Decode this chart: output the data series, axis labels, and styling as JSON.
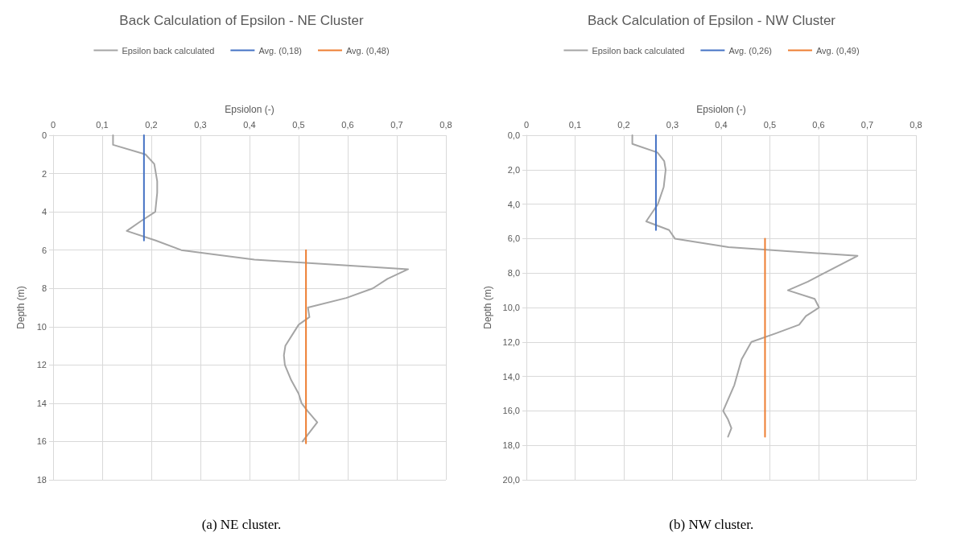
{
  "chart_data": [
    {
      "type": "line",
      "title": "Back Calculation of Epsilon - NE Cluster",
      "xlabel": "Epsiolon (-)",
      "ylabel": "Depth (m)",
      "legend": "top",
      "grid": true,
      "marker": "none",
      "line_style": "solid",
      "xlim": [
        0,
        0.8
      ],
      "xticks": [
        0,
        {
          "value": 0.1,
          "label": "0,1"
        },
        {
          "value": 0.2,
          "label": "0,2"
        },
        {
          "value": 0.3,
          "label": "0,3"
        },
        {
          "value": 0.4,
          "label": "0,4"
        },
        {
          "value": 0.5,
          "label": "0,5"
        },
        {
          "value": 0.6,
          "label": "0,6"
        },
        {
          "value": 0.7,
          "label": "0,7"
        },
        {
          "value": 0.8,
          "label": "0,8"
        }
      ],
      "ylim": [
        18,
        0
      ],
      "yticks": [
        0,
        2,
        4,
        6,
        8,
        10,
        12,
        14,
        16,
        18
      ],
      "annotations": [
        "(a) NE cluster."
      ],
      "series": [
        {
          "name": "Epsilon back calculated",
          "color": "#a5a5a5",
          "x": [
            0.122,
            0.122,
            0.188,
            0.206,
            0.212,
            0.212,
            0.208,
            0.178,
            0.15,
            0.209,
            0.261,
            0.41,
            0.723,
            0.681,
            0.651,
            0.597,
            0.519,
            0.522,
            0.5,
            0.473,
            0.47,
            0.472,
            0.485,
            0.5,
            0.506,
            0.518,
            0.538,
            0.508
          ],
          "values": [
            0,
            0.5,
            1,
            1.5,
            2.4,
            3,
            4,
            4.5,
            5,
            5.5,
            6,
            6.5,
            7,
            7.5,
            8,
            8.5,
            9,
            9.5,
            9.9,
            11,
            11.5,
            12,
            12.8,
            13.5,
            14,
            14.4,
            15,
            16
          ]
        },
        {
          "name": "Avg. (0,18)",
          "color": "#4472c4",
          "x": [
            0.185,
            0.185
          ],
          "values": [
            0,
            5.5
          ]
        },
        {
          "name": "Avg. (0,48)",
          "color": "#ed7d31",
          "x": [
            0.515,
            0.515
          ],
          "values": [
            6,
            16.1
          ]
        }
      ]
    },
    {
      "type": "line",
      "title": "Back Calculation of Epsilon - NW Cluster",
      "xlabel": "Epsiolon (-)",
      "ylabel": "Depth (m)",
      "legend": "top",
      "grid": true,
      "marker": "none",
      "line_style": "solid",
      "xlim": [
        0,
        0.8
      ],
      "xticks": [
        0,
        {
          "value": 0.1,
          "label": "0,1"
        },
        {
          "value": 0.2,
          "label": "0,2"
        },
        {
          "value": 0.3,
          "label": "0,3"
        },
        {
          "value": 0.4,
          "label": "0,4"
        },
        {
          "value": 0.5,
          "label": "0,5"
        },
        {
          "value": 0.6,
          "label": "0,6"
        },
        {
          "value": 0.7,
          "label": "0,7"
        },
        {
          "value": 0.8,
          "label": "0,8"
        }
      ],
      "ylim": [
        20,
        0
      ],
      "yticks": [
        {
          "value": 0,
          "label": "0,0"
        },
        {
          "value": 2,
          "label": "2,0"
        },
        {
          "value": 4,
          "label": "4,0"
        },
        {
          "value": 6,
          "label": "6,0"
        },
        {
          "value": 8,
          "label": "8,0"
        },
        {
          "value": 10,
          "label": "10,0"
        },
        {
          "value": 12,
          "label": "12,0"
        },
        {
          "value": 14,
          "label": "14,0"
        },
        {
          "value": 16,
          "label": "16,0"
        },
        {
          "value": 18,
          "label": "18,0"
        },
        {
          "value": 20,
          "label": "20,0"
        }
      ],
      "annotations": [
        "(b) NW cluster."
      ],
      "series": [
        {
          "name": "Epsilon back calculated",
          "color": "#a5a5a5",
          "x": [
            0.2175,
            0.2175,
            0.269,
            0.283,
            0.286,
            0.282,
            0.27,
            0.258,
            0.246,
            0.293,
            0.305,
            0.415,
            0.68,
            0.578,
            0.537,
            0.592,
            0.601,
            0.574,
            0.56,
            0.512,
            0.462,
            0.442,
            0.427,
            0.404,
            0.414,
            0.421,
            0.414
          ],
          "values": [
            0,
            0.5,
            1,
            1.5,
            2,
            3,
            4,
            4.5,
            5,
            5.5,
            6,
            6.5,
            7,
            8.5,
            9,
            9.5,
            10,
            10.5,
            11,
            11.5,
            12,
            13,
            14.5,
            16,
            16.5,
            17,
            17.5
          ]
        },
        {
          "name": "Avg. (0,26)",
          "color": "#4472c4",
          "x": [
            0.266,
            0.266
          ],
          "values": [
            0,
            5.5
          ]
        },
        {
          "name": "Avg. (0,49)",
          "color": "#ed7d31",
          "x": [
            0.49,
            0.49
          ],
          "values": [
            6,
            17.5
          ]
        }
      ]
    }
  ]
}
